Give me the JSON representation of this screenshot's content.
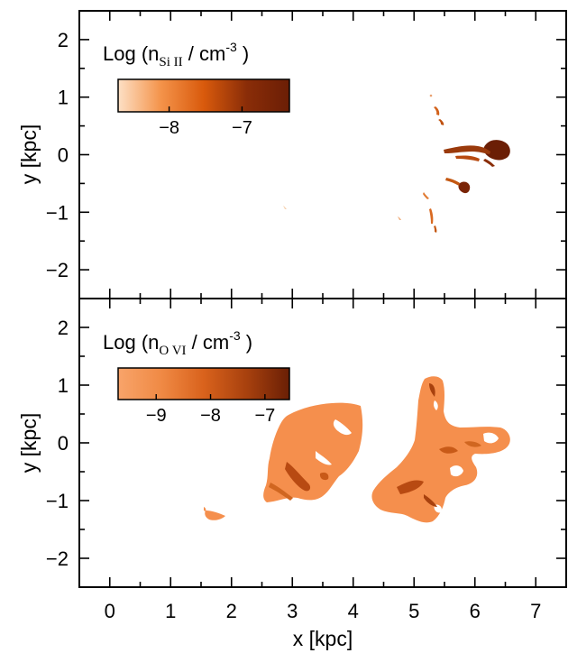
{
  "chart_data": [
    {
      "type": "heatmap",
      "panel": "top",
      "xlabel": "x [kpc]",
      "ylabel": "y [kpc]",
      "xlim": [
        -0.5,
        7.5
      ],
      "ylim": [
        -2.5,
        2.5
      ],
      "y_ticks": [
        2,
        1,
        0,
        -1,
        -2
      ],
      "y_tick_labels": [
        "2",
        "1",
        "0",
        "−1",
        "−2"
      ],
      "colorbar": {
        "title_prefix": "Log (n",
        "species": "Si II",
        "title_mid": " / cm",
        "exponent": "-3",
        "title_suffix": " )",
        "range": [
          -8.7,
          -6.35
        ],
        "ticks": [
          -8,
          -7
        ],
        "tick_labels": [
          "−8",
          "−7"
        ],
        "colors": [
          "#fde0c5",
          "#f4934a",
          "#d95a0c",
          "#8a2d08",
          "#6b1e05"
        ]
      },
      "features": [
        {
          "kind": "clump",
          "x": 6.3,
          "y": 0.1,
          "level": -6.6
        },
        {
          "kind": "clump",
          "x": 5.75,
          "y": -0.57,
          "level": -6.8
        },
        {
          "kind": "filament",
          "x": 5.8,
          "y": 0.15,
          "level": -7.2
        },
        {
          "kind": "wisp",
          "x": 5.3,
          "y": 0.65,
          "level": -7.4
        },
        {
          "kind": "wisp",
          "x": 5.5,
          "y": -0.4,
          "level": -7.5
        },
        {
          "kind": "wisp",
          "x": 5.15,
          "y": -1.1,
          "level": -7.8
        },
        {
          "kind": "wisp",
          "x": 4.75,
          "y": -1.2,
          "level": -8.2
        },
        {
          "kind": "wisp",
          "x": 1.4,
          "y": -0.93,
          "level": -8.6
        }
      ]
    },
    {
      "type": "heatmap",
      "panel": "bottom",
      "xlabel": "x [kpc]",
      "ylabel": "y [kpc]",
      "xlim": [
        -0.5,
        7.5
      ],
      "ylim": [
        -2.5,
        2.5
      ],
      "x_ticks": [
        0,
        1,
        2,
        3,
        4,
        5,
        6,
        7
      ],
      "x_tick_labels": [
        "0",
        "1",
        "2",
        "3",
        "4",
        "5",
        "6",
        "7"
      ],
      "y_ticks": [
        2,
        1,
        0,
        -1,
        -2
      ],
      "y_tick_labels": [
        "2",
        "1",
        "0",
        "−1",
        "−2"
      ],
      "colorbar": {
        "title_prefix": "Log (n",
        "species": "O VI",
        "title_mid": " / cm",
        "exponent": "-3",
        "title_suffix": " )",
        "range": [
          -9.7,
          -6.55
        ],
        "ticks": [
          -9,
          -8,
          -7
        ],
        "tick_labels": [
          "−9",
          "−8",
          "−7"
        ],
        "colors": [
          "#f8a46a",
          "#f08a45",
          "#d9621c",
          "#a8410e",
          "#6a1f05"
        ]
      },
      "features": [
        {
          "kind": "cloud",
          "x": 2.5,
          "y": 0.0,
          "level": -9.3
        },
        {
          "kind": "cloud",
          "x": 5.4,
          "y": -0.2,
          "level": -9.3
        },
        {
          "kind": "wisp",
          "x": 1.7,
          "y": -1.25,
          "level": -9.4
        },
        {
          "kind": "core",
          "x": 2.35,
          "y": -0.7,
          "level": -8.3
        },
        {
          "kind": "core",
          "x": 5.2,
          "y": -0.6,
          "level": -8.2
        },
        {
          "kind": "core",
          "x": 5.25,
          "y": 1.0,
          "level": -8.3
        }
      ]
    }
  ]
}
